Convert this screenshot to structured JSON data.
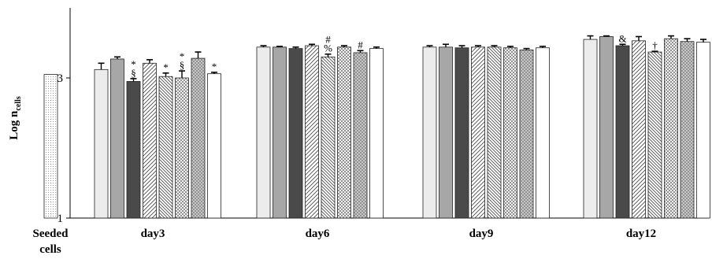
{
  "chart_data": {
    "type": "bar",
    "ylabel_main": "Log n",
    "ylabel_sub": "cells",
    "ylim": [
      1,
      4
    ],
    "yticks": [
      {
        "value": 1,
        "label": "1"
      },
      {
        "value": 3,
        "label": "3"
      }
    ],
    "groups": [
      {
        "label_lines": [
          "Seeded",
          "cells"
        ],
        "bars": [
          {
            "value": 3.05,
            "err": 0,
            "annot": ""
          },
          {
            "value": null,
            "err": 0,
            "annot": ""
          }
        ]
      },
      {
        "label_lines": [
          "day3"
        ],
        "bars": [
          {
            "value": 3.12,
            "err": 0.09,
            "annot": ""
          },
          {
            "value": 3.27,
            "err": 0.03,
            "annot": ""
          },
          {
            "value": 2.95,
            "err": 0.04,
            "annot": "*\n§"
          },
          {
            "value": 3.21,
            "err": 0.05,
            "annot": ""
          },
          {
            "value": 3.02,
            "err": 0.05,
            "annot": "*"
          },
          {
            "value": 3.0,
            "err": 0.1,
            "annot": "*\n§"
          },
          {
            "value": 3.28,
            "err": 0.09,
            "annot": ""
          },
          {
            "value": 3.06,
            "err": 0.02,
            "annot": "*"
          }
        ]
      },
      {
        "label_lines": [
          "day6"
        ],
        "bars": [
          {
            "value": 3.44,
            "err": 0.02,
            "annot": ""
          },
          {
            "value": 3.44,
            "err": 0.01,
            "annot": ""
          },
          {
            "value": 3.42,
            "err": 0.02,
            "annot": ""
          },
          {
            "value": 3.46,
            "err": 0.02,
            "annot": ""
          },
          {
            "value": 3.3,
            "err": 0.04,
            "annot": "#\n%"
          },
          {
            "value": 3.44,
            "err": 0.02,
            "annot": ""
          },
          {
            "value": 3.36,
            "err": 0.03,
            "annot": "#"
          },
          {
            "value": 3.42,
            "err": 0.02,
            "annot": ""
          }
        ]
      },
      {
        "label_lines": [
          "day9"
        ],
        "bars": [
          {
            "value": 3.44,
            "err": 0.02,
            "annot": ""
          },
          {
            "value": 3.44,
            "err": 0.04,
            "annot": ""
          },
          {
            "value": 3.43,
            "err": 0.03,
            "annot": ""
          },
          {
            "value": 3.44,
            "err": 0.02,
            "annot": ""
          },
          {
            "value": 3.44,
            "err": 0.02,
            "annot": ""
          },
          {
            "value": 3.43,
            "err": 0.02,
            "annot": ""
          },
          {
            "value": 3.4,
            "err": 0.02,
            "annot": ""
          },
          {
            "value": 3.43,
            "err": 0.02,
            "annot": ""
          }
        ]
      },
      {
        "label_lines": [
          "day12"
        ],
        "bars": [
          {
            "value": 3.55,
            "err": 0.05,
            "annot": ""
          },
          {
            "value": 3.59,
            "err": 0.01,
            "annot": ""
          },
          {
            "value": 3.46,
            "err": 0.02,
            "annot": "&"
          },
          {
            "value": 3.53,
            "err": 0.06,
            "annot": ""
          },
          {
            "value": 3.37,
            "err": 0.01,
            "annot": "†"
          },
          {
            "value": 3.56,
            "err": 0.04,
            "annot": ""
          },
          {
            "value": 3.52,
            "err": 0.04,
            "annot": ""
          },
          {
            "value": 3.51,
            "err": 0.04,
            "annot": ""
          }
        ]
      }
    ],
    "series_fills": [
      "light-gray",
      "medium-gray",
      "dark-gray",
      "diagonal-hatch",
      "dense-diagonal-hatch",
      "cross-diagonal-hatch",
      "dotted-crosshatch",
      "white"
    ],
    "seeded_fill": "fine-dots",
    "colors": {
      "light_gray": "#ececec",
      "medium_gray": "#a7a7a7",
      "dark_gray": "#4a4a4a",
      "outline": "#222222"
    }
  }
}
